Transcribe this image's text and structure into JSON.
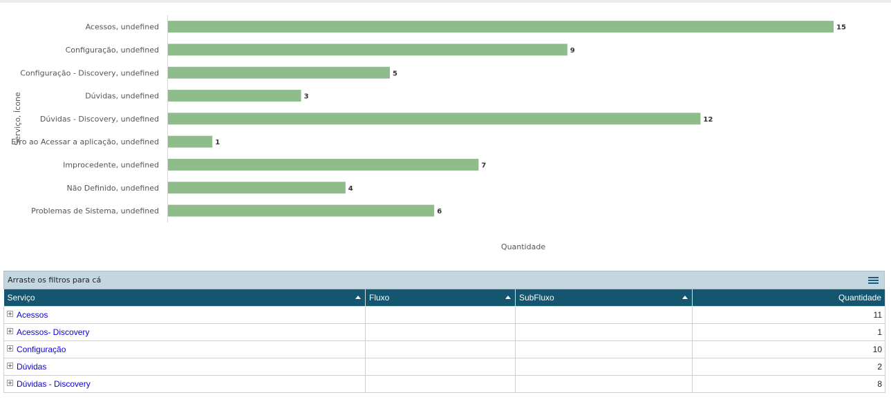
{
  "chart_data": {
    "type": "bar",
    "orientation": "horizontal",
    "categories": [
      "Acessos, undefined",
      "Configuração, undefined",
      "Configuração - Discovery, undefined",
      "Dúvidas, undefined",
      "Dúvidas - Discovery, undefined",
      "Erro ao Acessar a aplicação, undefined",
      "Improcedente, undefined",
      "Não Definido, undefined",
      "Problemas de Sistema, undefined"
    ],
    "values": [
      15,
      9,
      5,
      3,
      12,
      1,
      7,
      4,
      6
    ],
    "ylabel": "Serviço, Ícone",
    "xlabel": "Quantidade",
    "xlim": [
      0,
      15
    ],
    "color": "#8fbc8b",
    "grid": false,
    "legend": "none"
  },
  "pivot": {
    "filter_hint": "Arraste os filtros para cá",
    "columns": {
      "servico": "Serviço",
      "fluxo": "Fluxo",
      "subfluxo": "SubFluxo",
      "quantidade": "Quantidade"
    },
    "rows": [
      {
        "servico": "Acessos",
        "fluxo": "",
        "subfluxo": "",
        "quantidade": "11"
      },
      {
        "servico": "Acessos- Discovery",
        "fluxo": "",
        "subfluxo": "",
        "quantidade": "1"
      },
      {
        "servico": "Configuração",
        "fluxo": "",
        "subfluxo": "",
        "quantidade": "10"
      },
      {
        "servico": "Dúvidas",
        "fluxo": "",
        "subfluxo": "",
        "quantidade": "2"
      },
      {
        "servico": "Dúvidas - Discovery",
        "fluxo": "",
        "subfluxo": "",
        "quantidade": "8"
      }
    ]
  }
}
